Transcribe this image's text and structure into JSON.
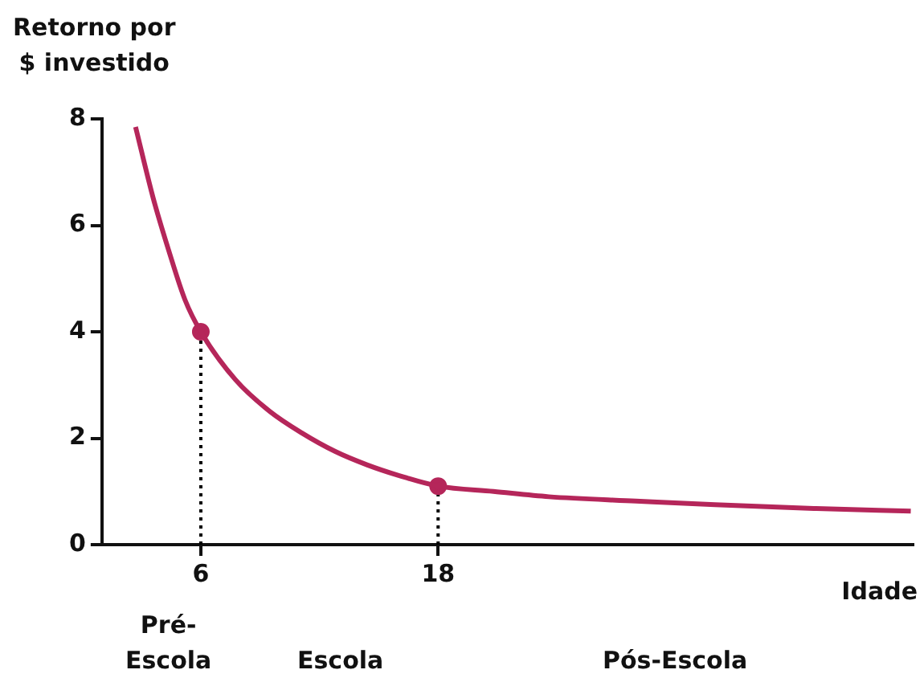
{
  "chart_data": {
    "type": "line",
    "ylabel": "Retorno por\n$ investido",
    "xlabel": "Idade",
    "xlim": [
      1,
      42
    ],
    "xticks": [
      6,
      18
    ],
    "ylim": [
      0,
      8
    ],
    "yticks": [
      0,
      2,
      4,
      6,
      8
    ],
    "grid": false,
    "legend": false,
    "series": [
      {
        "type": "line",
        "color": "#b5265a",
        "marker": "none",
        "x": [
          2.7,
          3.6,
          4.4,
          5.2,
          6,
          7.75,
          9.5,
          11.1,
          12.8,
          14.4,
          16,
          18,
          20.8,
          23.6,
          28,
          32,
          37,
          41.9
        ],
        "values": [
          7.85,
          6.5,
          5.5,
          4.6,
          4,
          3.1,
          2.5,
          2.1,
          1.75,
          1.5,
          1.3,
          1.1,
          1,
          0.9,
          0.82,
          0.75,
          0.68,
          0.63
        ]
      },
      {
        "type": "scatter",
        "color": "#b5265a",
        "marker": "circle",
        "x": [
          6,
          18
        ],
        "values": [
          4,
          1.1
        ]
      }
    ],
    "ref_lines": [
      {
        "axis": "x",
        "value": 6,
        "line_style": "dotted",
        "color": "#000000"
      },
      {
        "axis": "x",
        "value": 18,
        "line_style": "dotted",
        "color": "#000000"
      }
    ],
    "annotations": [
      "Pré-\nEscola",
      "Escola",
      "Pós-Escola"
    ]
  }
}
